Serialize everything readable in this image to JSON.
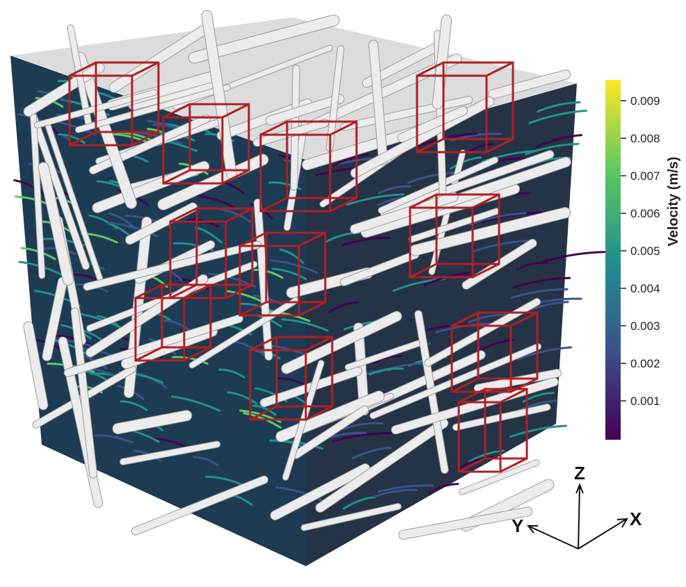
{
  "colorbar": {
    "title": "Velocity (m/s)",
    "ticks": [
      "0.009",
      "0.008",
      "0.007",
      "0.006",
      "0.005",
      "0.004",
      "0.003",
      "0.002",
      "0.001"
    ],
    "colormap": [
      "#440154",
      "#3b528b",
      "#21918c",
      "#5ec962",
      "#fde725"
    ]
  },
  "axes": {
    "x": "X",
    "y": "Y",
    "z": "Z"
  },
  "colors": {
    "frame": "#b01e24",
    "fiber": "#ececec",
    "fiber_edge": "#9a9a9a"
  }
}
